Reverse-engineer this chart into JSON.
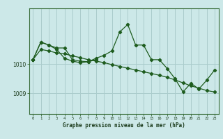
{
  "bg_color": "#cce8e8",
  "line_color": "#1e5c1e",
  "grid_color": "#aacccc",
  "xlabel": "Graphe pression niveau de la mer (hPa)",
  "ylim": [
    1008.3,
    1011.9
  ],
  "xlim": [
    -0.5,
    23.5
  ],
  "yticks": [
    1009,
    1010
  ],
  "xticks": [
    0,
    1,
    2,
    3,
    4,
    5,
    6,
    7,
    8,
    9,
    10,
    11,
    12,
    13,
    14,
    15,
    16,
    17,
    18,
    19,
    20,
    21,
    22,
    23
  ],
  "line1": [
    1010.15,
    1010.75,
    1010.65,
    1010.55,
    1010.55,
    1010.15,
    1010.1,
    1010.08,
    1010.2,
    1010.3,
    1010.45,
    1011.1,
    1011.35,
    1010.65,
    1010.65,
    1010.15,
    1010.15,
    1009.85,
    1009.5,
    1009.05,
    1009.35,
    1009.15,
    1009.45,
    1009.8
  ],
  "line2": [
    1010.15,
    1010.5,
    1010.45,
    1010.38,
    1010.35,
    1010.28,
    1010.22,
    1010.15,
    1010.1,
    1010.05,
    1009.98,
    1009.92,
    1009.86,
    1009.8,
    1009.74,
    1009.68,
    1009.62,
    1009.55,
    1009.46,
    1009.36,
    1009.26,
    1009.18,
    1009.1,
    1009.05
  ],
  "line3_x": [
    0,
    1,
    2,
    3,
    4,
    5,
    6,
    7,
    8
  ],
  "line3": [
    1010.15,
    1010.75,
    1010.65,
    1010.5,
    1010.2,
    1010.1,
    1010.05,
    1010.08,
    1010.15
  ]
}
